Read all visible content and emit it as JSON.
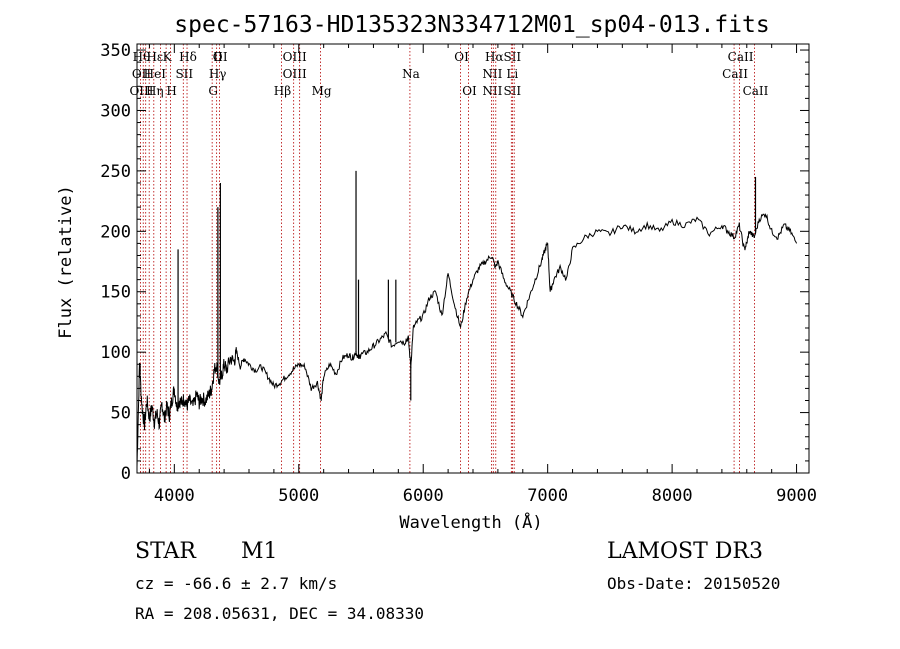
{
  "chart_data": {
    "type": "line",
    "title": "spec-57163-HD135323N334712M01_sp04-013.fits",
    "xlabel": "Wavelength (Å)",
    "ylabel": "Flux (relative)",
    "xlim": [
      3700,
      9100
    ],
    "ylim": [
      0,
      355
    ],
    "x_ticks": [
      4000,
      5000,
      6000,
      7000,
      8000,
      9000
    ],
    "y_ticks": [
      0,
      50,
      100,
      150,
      200,
      250,
      300,
      350
    ],
    "grid": false,
    "series": [
      {
        "x": [
          3700,
          3720,
          3740,
          3760,
          3780,
          3800,
          3820,
          3840,
          3860,
          3880,
          3900,
          3920,
          3940,
          3960,
          3980,
          4000,
          4020,
          4040,
          4060,
          4080,
          4100,
          4120,
          4150,
          4180,
          4200,
          4220,
          4250,
          4280,
          4300,
          4320,
          4340,
          4360,
          4380,
          4400,
          4420,
          4450,
          4480,
          4500,
          4530,
          4560,
          4600,
          4650,
          4700,
          4750,
          4800,
          4850,
          4900,
          4950,
          5000,
          5050,
          5100,
          5150,
          5180,
          5200,
          5250,
          5300,
          5350,
          5400,
          5430,
          5460,
          5480,
          5500,
          5550,
          5600,
          5650,
          5700,
          5750,
          5800,
          5850,
          5880,
          5900,
          5920,
          5950,
          6000,
          6050,
          6100,
          6150,
          6200,
          6250,
          6300,
          6350,
          6400,
          6450,
          6500,
          6550,
          6580,
          6600,
          6650,
          6700,
          6750,
          6800,
          6850,
          6900,
          6950,
          6980,
          7000,
          7020,
          7050,
          7100,
          7150,
          7200,
          7300,
          7400,
          7500,
          7600,
          7700,
          7800,
          7900,
          8000,
          8100,
          8200,
          8300,
          8400,
          8450,
          8500,
          8540,
          8580,
          8600,
          8620,
          8660,
          8700,
          8750,
          8800,
          8850,
          8900,
          8950,
          9000
        ],
        "values": [
          5,
          90,
          55,
          40,
          60,
          45,
          55,
          42,
          50,
          40,
          58,
          45,
          55,
          48,
          60,
          70,
          55,
          60,
          58,
          62,
          55,
          60,
          55,
          65,
          58,
          62,
          60,
          65,
          70,
          85,
          90,
          75,
          80,
          90,
          85,
          95,
          92,
          100,
          88,
          95,
          90,
          85,
          88,
          80,
          72,
          75,
          80,
          85,
          90,
          88,
          70,
          75,
          60,
          80,
          90,
          82,
          95,
          98,
          95,
          100,
          95,
          98,
          100,
          105,
          110,
          115,
          105,
          110,
          108,
          112,
          88,
          120,
          125,
          130,
          145,
          150,
          130,
          165,
          140,
          120,
          145,
          160,
          170,
          175,
          180,
          170,
          175,
          160,
          150,
          140,
          130,
          145,
          160,
          175,
          185,
          190,
          150,
          160,
          170,
          160,
          185,
          195,
          200,
          198,
          205,
          200,
          205,
          200,
          208,
          205,
          210,
          198,
          205,
          200,
          195,
          205,
          185,
          190,
          200,
          195,
          210,
          215,
          200,
          195,
          205,
          200,
          190
        ]
      }
    ],
    "spikes": [
      {
        "x": 3725,
        "y": 90
      },
      {
        "x": 4030,
        "y": 185
      },
      {
        "x": 4350,
        "y": 220
      },
      {
        "x": 4370,
        "y": 240
      },
      {
        "x": 5460,
        "y": 250
      },
      {
        "x": 5480,
        "y": 160
      },
      {
        "x": 5720,
        "y": 160
      },
      {
        "x": 5780,
        "y": 160
      },
      {
        "x": 5900,
        "y": 60
      },
      {
        "x": 8670,
        "y": 245
      }
    ],
    "line_markers": [
      {
        "x": 3728,
        "labels": [
          "Hθ",
          "OII",
          "OIII"
        ]
      },
      {
        "x": 3750,
        "labels": [
          ""
        ]
      },
      {
        "x": 3770,
        "labels": [
          ""
        ]
      },
      {
        "x": 3798,
        "labels": [
          "",
          "",
          ""
        ]
      },
      {
        "x": 3835,
        "labels": [
          "Hε",
          "HeI",
          "Hη"
        ]
      },
      {
        "x": 3889,
        "labels": [
          ""
        ]
      },
      {
        "x": 3934,
        "labels": [
          "K"
        ]
      },
      {
        "x": 3970,
        "labels": [
          "",
          "",
          "H"
        ]
      },
      {
        "x": 4072,
        "labels": [
          "",
          "SII"
        ]
      },
      {
        "x": 4102,
        "labels": [
          "Hδ"
        ]
      },
      {
        "x": 4304,
        "labels": [
          "",
          "",
          "G"
        ]
      },
      {
        "x": 4340,
        "labels": [
          "O",
          "Hγ"
        ]
      },
      {
        "x": 4363,
        "labels": [
          "III"
        ]
      },
      {
        "x": 4861,
        "labels": [
          "",
          "",
          "Hβ"
        ]
      },
      {
        "x": 4959,
        "labels": [
          "OIII",
          "OIII"
        ]
      },
      {
        "x": 5007,
        "labels": [
          ""
        ]
      },
      {
        "x": 5175,
        "labels": [
          "",
          "",
          "Mg"
        ]
      },
      {
        "x": 5893,
        "labels": [
          "",
          "Na"
        ]
      },
      {
        "x": 6300,
        "labels": [
          "OI"
        ]
      },
      {
        "x": 6364,
        "labels": [
          "",
          "",
          "OI"
        ]
      },
      {
        "x": 6548,
        "labels": [
          "",
          "NII",
          "NII"
        ]
      },
      {
        "x": 6563,
        "labels": [
          "Hα"
        ]
      },
      {
        "x": 6583,
        "labels": [
          ""
        ]
      },
      {
        "x": 6708,
        "labels": [
          "SII",
          "Li",
          "SII"
        ]
      },
      {
        "x": 6717,
        "labels": [
          ""
        ]
      },
      {
        "x": 6731,
        "labels": [
          ""
        ]
      },
      {
        "x": 8498,
        "labels": [
          "",
          "CaII"
        ]
      },
      {
        "x": 8542,
        "labels": [
          "CaII"
        ]
      },
      {
        "x": 8662,
        "labels": [
          "",
          "",
          "CaII"
        ]
      }
    ]
  },
  "info": {
    "object_class": "STAR",
    "subclass": "M1",
    "survey": "LAMOST DR3",
    "redshift": "cz = -66.6 ± 2.7 km/s",
    "obs_date": "Obs-Date: 20150520",
    "coords": "RA = 208.05631, DEC =  34.08330"
  },
  "colors": {
    "marker": "#b30000",
    "spectrum": "#000000"
  }
}
